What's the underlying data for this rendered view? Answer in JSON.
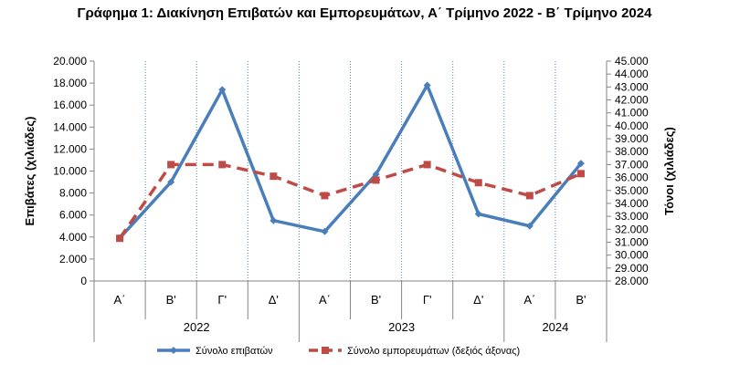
{
  "chart_data": {
    "type": "line",
    "title": "Γράφημα 1: Διακίνηση Επιβατών και Εμπορευμάτων, Α΄ Τρίμηνο 2022 - Β΄ Τρίμηνο 2024",
    "ylabel_left": "Επιβάτες  (χιλιάδες)",
    "ylabel_right": "Τόνοι  (χιλιάδες)",
    "y_left_ticks": [
      "20.000",
      "18.000",
      "16.000",
      "14.000",
      "12.000",
      "10.000",
      "8.000",
      "6.000",
      "4.000",
      "2.000",
      "0"
    ],
    "y_right_ticks": [
      "45.000",
      "44.000",
      "43.000",
      "42.000",
      "41.000",
      "40.000",
      "39.000",
      "38.000",
      "37.000",
      "36.000",
      "35.000",
      "34.000",
      "33.000",
      "32.000",
      "31.000",
      "30.000",
      "29.000",
      "28.000"
    ],
    "ylim_left": [
      0,
      20000
    ],
    "ylim_right": [
      28000,
      45000
    ],
    "categories": [
      "Α΄",
      "Β'",
      "Γ'",
      "Δ'",
      "Α΄",
      "Β'",
      "Γ'",
      "Δ'",
      "Α΄",
      "Β'"
    ],
    "year_groups": [
      {
        "label": "2022",
        "count": 4
      },
      {
        "label": "2023",
        "count": 4
      },
      {
        "label": "2024",
        "count": 2
      }
    ],
    "series": [
      {
        "name": "Σύνολο επιβατών",
        "axis": "left",
        "color": "#4a7ebb",
        "values": [
          3900,
          9000,
          17400,
          5500,
          4500,
          9700,
          17800,
          6100,
          5000,
          10700
        ]
      },
      {
        "name": "Σύνολο εμπορευμάτων (δεξιός άξονας)",
        "axis": "right",
        "color": "#be4b48",
        "values": [
          31300,
          37000,
          37000,
          36100,
          34600,
          35800,
          37000,
          35600,
          34600,
          36300
        ]
      }
    ],
    "grid": "vertical dotted",
    "legend_position": "bottom"
  }
}
